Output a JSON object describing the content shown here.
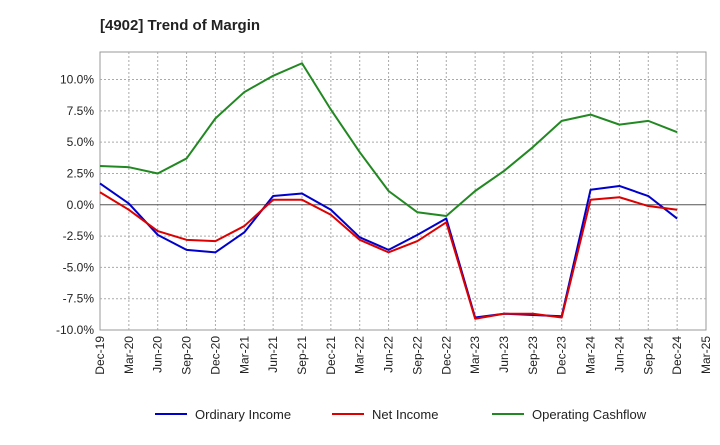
{
  "chart_data": {
    "type": "line",
    "title": "[4902]  Trend of Margin",
    "xlabel": "",
    "ylabel": "",
    "categories": [
      "Dec-19",
      "Mar-20",
      "Jun-20",
      "Sep-20",
      "Dec-20",
      "Mar-21",
      "Jun-21",
      "Sep-21",
      "Dec-21",
      "Mar-22",
      "Jun-22",
      "Sep-22",
      "Dec-22",
      "Mar-23",
      "Jun-23",
      "Sep-23",
      "Dec-23",
      "Mar-24",
      "Jun-24",
      "Sep-24",
      "Dec-24",
      "Mar-25"
    ],
    "yticks": [
      "10.0%",
      "7.5%",
      "5.0%",
      "2.5%",
      "0.0%",
      "-2.5%",
      "-5.0%",
      "-7.5%",
      "-10.0%"
    ],
    "ytick_values": [
      10,
      7.5,
      5,
      2.5,
      0,
      -2.5,
      -5,
      -7.5,
      -10
    ],
    "ylim": [
      -10,
      12.2
    ],
    "grid": true,
    "legend_position": "bottom",
    "series": [
      {
        "name": "Ordinary Income",
        "color": "#0000cc",
        "values": [
          1.7,
          0.1,
          -2.4,
          -3.6,
          -3.8,
          -2.2,
          0.7,
          0.9,
          -0.4,
          -2.6,
          -3.6,
          -2.4,
          -1.1,
          -9.0,
          -8.7,
          -8.8,
          -8.9,
          1.2,
          1.5,
          0.7,
          -1.1,
          null
        ]
      },
      {
        "name": "Net Income",
        "color": "#dd0000",
        "values": [
          1.0,
          -0.4,
          -2.1,
          -2.8,
          -2.9,
          -1.7,
          0.4,
          0.4,
          -0.8,
          -2.8,
          -3.8,
          -2.9,
          -1.4,
          -9.1,
          -8.7,
          -8.7,
          -9.0,
          0.4,
          0.6,
          -0.1,
          -0.4,
          null
        ]
      },
      {
        "name": "Operating Cashflow",
        "color": "#228822",
        "values": [
          3.1,
          3.0,
          2.5,
          3.7,
          6.9,
          9.0,
          10.3,
          11.3,
          7.6,
          4.2,
          1.1,
          -0.6,
          -0.9,
          1.1,
          2.7,
          4.6,
          6.7,
          7.2,
          6.4,
          6.7,
          5.8,
          null
        ]
      }
    ]
  }
}
